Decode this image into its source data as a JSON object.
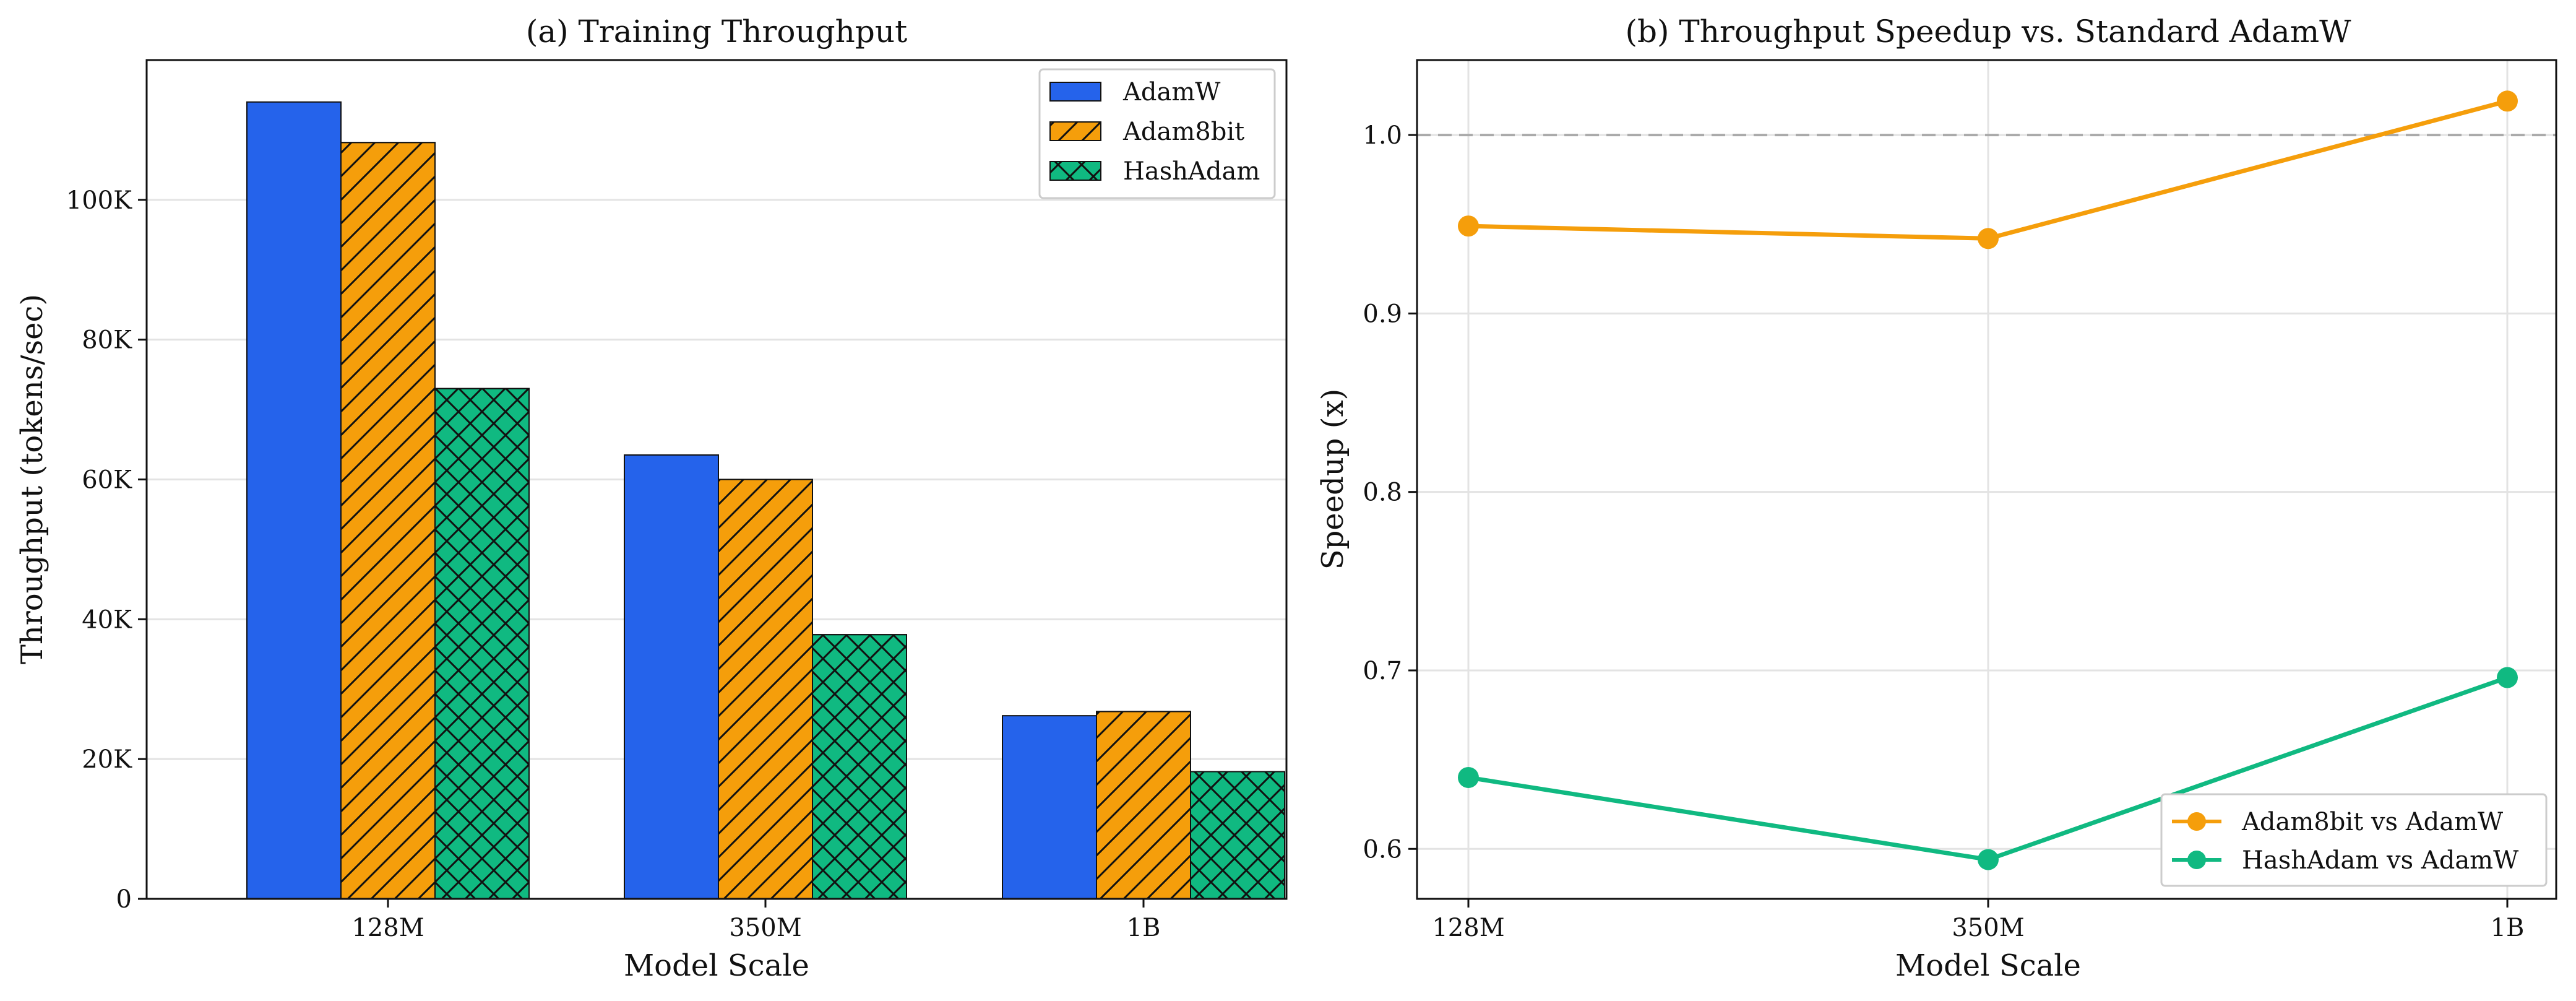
{
  "chart_data": [
    {
      "type": "bar",
      "title": "(a) Training Throughput",
      "xlabel": "Model Scale",
      "ylabel": "Throughput (tokens/sec)",
      "categories": [
        "128M",
        "350M",
        "1B"
      ],
      "ylim": [
        0,
        120000
      ],
      "yticks": [
        0,
        20000,
        40000,
        60000,
        80000,
        100000
      ],
      "ytick_labels": [
        "0",
        "20K",
        "40K",
        "60K",
        "80K",
        "100K"
      ],
      "grid": true,
      "legend_position": "top-right",
      "series": [
        {
          "name": "AdamW",
          "values": [
            114000,
            63500,
            26200
          ],
          "color": "#2563eb",
          "hatch": "none"
        },
        {
          "name": "Adam8bit",
          "values": [
            108200,
            60000,
            26800
          ],
          "color": "#f59e0b",
          "hatch": "diagonal"
        },
        {
          "name": "HashAdam",
          "values": [
            73000,
            37800,
            18200
          ],
          "color": "#10b981",
          "hatch": "cross"
        }
      ]
    },
    {
      "type": "line",
      "title": "(b) Throughput Speedup vs. Standard AdamW",
      "xlabel": "Model Scale",
      "ylabel": "Speedup (x)",
      "categories": [
        "128M",
        "350M",
        "1B"
      ],
      "ylim": [
        0.572,
        1.042
      ],
      "yticks": [
        0.6,
        0.7,
        0.8,
        0.9,
        1.0
      ],
      "ytick_labels": [
        "0.6",
        "0.7",
        "0.8",
        "0.9",
        "1.0"
      ],
      "reference_line": 1.0,
      "grid": true,
      "legend_position": "bottom-right",
      "series": [
        {
          "name": "Adam8bit vs AdamW",
          "values": [
            0.949,
            0.942,
            1.019
          ],
          "color": "#f59e0b"
        },
        {
          "name": "HashAdam vs AdamW",
          "values": [
            0.64,
            0.594,
            0.696
          ],
          "color": "#10b981"
        }
      ]
    }
  ]
}
